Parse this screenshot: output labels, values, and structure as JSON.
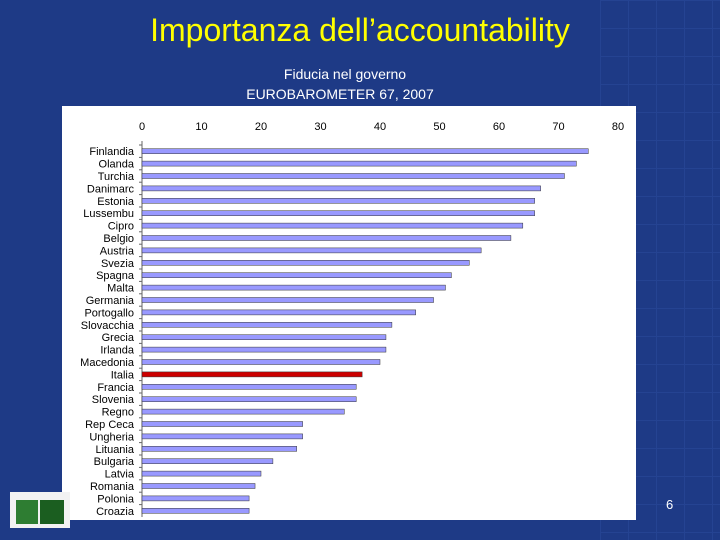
{
  "slide": {
    "title": "Importanza dell’accountability",
    "subtitle": "Fiducia nel governo",
    "source": "EUROBAROMETER 67, 2007",
    "page_number": "6"
  },
  "colors": {
    "background": "#1e3a86",
    "title": "#ffff00",
    "bar": "#9999ff",
    "highlight": "#cc0000"
  },
  "chart_data": {
    "type": "bar",
    "orientation": "horizontal",
    "title": "",
    "xlabel": "",
    "ylabel": "",
    "xlim": [
      0,
      80
    ],
    "ticks": [
      0,
      10,
      20,
      30,
      40,
      50,
      60,
      70,
      80
    ],
    "highlight": "Italia",
    "categories": [
      "Finlandia",
      "Olanda",
      "Turchia",
      "Danimarc",
      "Estonia",
      "Lussembu",
      "Cipro",
      "Belgio",
      "Austria",
      "Svezia",
      "Spagna",
      "Malta",
      "Germania",
      "Portogallo",
      "Slovacchia",
      "Grecia",
      "Irlanda",
      "Macedonia",
      "Italia",
      "Francia",
      "Slovenia",
      "Regno",
      "Rep Ceca",
      "Ungheria",
      "Lituania",
      "Bulgaria",
      "Latvia",
      "Romania",
      "Polonia",
      "Croazia"
    ],
    "values": [
      75,
      73,
      71,
      67,
      66,
      66,
      64,
      62,
      57,
      55,
      52,
      51,
      49,
      46,
      42,
      41,
      41,
      40,
      37,
      36,
      36,
      34,
      27,
      27,
      26,
      22,
      20,
      19,
      18,
      18
    ]
  }
}
